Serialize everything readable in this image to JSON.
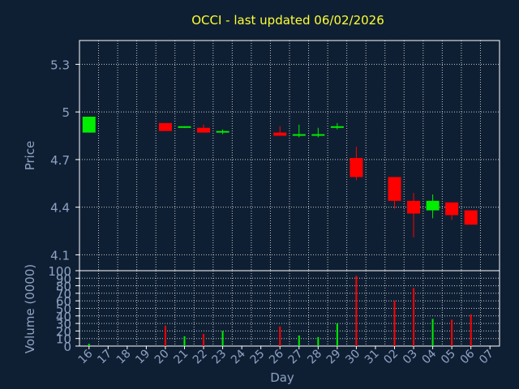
{
  "colors": {
    "background": "#0f1f33",
    "plot_border": "#ffffff",
    "grid": "#ffffff",
    "text": "#8ea2c3",
    "title": "#ffff33",
    "up": "#00ee00",
    "down": "#ff0000"
  },
  "chart_data": [
    {
      "type": "candlestick",
      "title": "OCCI - last updated 06/02/2026",
      "ylabel": "Price",
      "ylim": [
        4.0,
        5.45
      ],
      "yticks": [
        "5.3",
        "5",
        "4.7",
        "4.4",
        "4.1"
      ],
      "ytick_values": [
        5.3,
        5.0,
        4.7,
        4.4,
        4.1
      ],
      "grid": true,
      "categories": [
        "16",
        "17",
        "18",
        "19",
        "20",
        "21",
        "22",
        "23",
        "24",
        "25",
        "26",
        "27",
        "28",
        "29",
        "30",
        "31",
        "02",
        "03",
        "04",
        "05",
        "06",
        "07"
      ],
      "candles": [
        {
          "day": "16",
          "open": 4.87,
          "close": 4.97,
          "high": 4.97,
          "low": 4.87
        },
        {
          "day": "20",
          "open": 4.93,
          "close": 4.88,
          "high": 4.93,
          "low": 4.88
        },
        {
          "day": "21",
          "open": 4.9,
          "close": 4.91,
          "high": 4.91,
          "low": 4.9
        },
        {
          "day": "22",
          "open": 4.9,
          "close": 4.87,
          "high": 4.92,
          "low": 4.87
        },
        {
          "day": "23",
          "open": 4.87,
          "close": 4.88,
          "high": 4.89,
          "low": 4.86
        },
        {
          "day": "26",
          "open": 4.87,
          "close": 4.85,
          "high": 4.91,
          "low": 4.85
        },
        {
          "day": "27",
          "open": 4.85,
          "close": 4.86,
          "high": 4.92,
          "low": 4.84
        },
        {
          "day": "28",
          "open": 4.85,
          "close": 4.86,
          "high": 4.9,
          "low": 4.84
        },
        {
          "day": "29",
          "open": 4.9,
          "close": 4.91,
          "high": 4.93,
          "low": 4.89
        },
        {
          "day": "30",
          "open": 4.71,
          "close": 4.59,
          "high": 4.78,
          "low": 4.57
        },
        {
          "day": "02",
          "open": 4.59,
          "close": 4.44,
          "high": 4.59,
          "low": 4.39
        },
        {
          "day": "03",
          "open": 4.44,
          "close": 4.36,
          "high": 4.49,
          "low": 4.21
        },
        {
          "day": "04",
          "open": 4.38,
          "close": 4.44,
          "high": 4.48,
          "low": 4.33
        },
        {
          "day": "05",
          "open": 4.43,
          "close": 4.35,
          "high": 4.43,
          "low": 4.32
        },
        {
          "day": "06",
          "open": 4.38,
          "close": 4.29,
          "high": 4.38,
          "low": 4.29
        }
      ]
    },
    {
      "type": "bar",
      "ylabel": "Volume (0000)",
      "xlabel": "Day",
      "ylim": [
        0,
        100
      ],
      "yticks": [
        "0",
        "10",
        "20",
        "30",
        "40",
        "50",
        "60",
        "70",
        "80",
        "90",
        "100"
      ],
      "ytick_values": [
        0,
        10,
        20,
        30,
        40,
        50,
        60,
        70,
        80,
        90,
        100
      ],
      "categories": [
        "16",
        "17",
        "18",
        "19",
        "20",
        "21",
        "22",
        "23",
        "24",
        "25",
        "26",
        "27",
        "28",
        "29",
        "30",
        "31",
        "02",
        "03",
        "04",
        "05",
        "06",
        "07"
      ],
      "bars": [
        {
          "day": "16",
          "value": 3,
          "direction": "up"
        },
        {
          "day": "20",
          "value": 27,
          "direction": "down"
        },
        {
          "day": "21",
          "value": 13,
          "direction": "up"
        },
        {
          "day": "22",
          "value": 16,
          "direction": "down"
        },
        {
          "day": "23",
          "value": 20,
          "direction": "up"
        },
        {
          "day": "26",
          "value": 26,
          "direction": "down"
        },
        {
          "day": "27",
          "value": 14,
          "direction": "up"
        },
        {
          "day": "28",
          "value": 12,
          "direction": "up"
        },
        {
          "day": "29",
          "value": 30,
          "direction": "up"
        },
        {
          "day": "30",
          "value": 93,
          "direction": "down"
        },
        {
          "day": "02",
          "value": 60,
          "direction": "down"
        },
        {
          "day": "03",
          "value": 77,
          "direction": "down"
        },
        {
          "day": "04",
          "value": 36,
          "direction": "up"
        },
        {
          "day": "05",
          "value": 35,
          "direction": "down"
        },
        {
          "day": "06",
          "value": 42,
          "direction": "down"
        }
      ]
    }
  ]
}
